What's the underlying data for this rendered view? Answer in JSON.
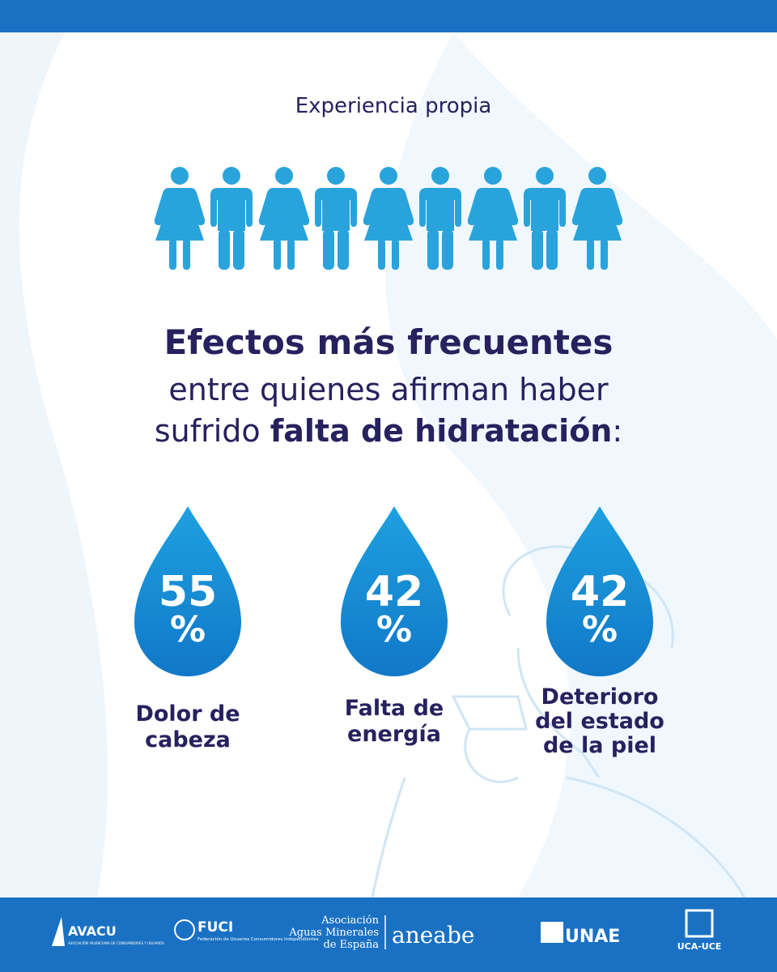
{
  "header": {
    "title": "Experiencia propia"
  },
  "headline": {
    "line1": "Efectos más frecuentes",
    "line2": "entre  quienes afirman haber",
    "line3": [
      "sufrido",
      "falta de hidratación",
      ":"
    ]
  },
  "stats": [
    {
      "value": 55,
      "unit": "%",
      "label": [
        "Dolor de",
        "cabeza"
      ]
    },
    {
      "value": 42,
      "unit": "%",
      "label": [
        "Falta de",
        "energía"
      ]
    },
    {
      "value": 42,
      "unit": "%",
      "label": [
        "Deterioro",
        "del estado",
        "de la piel"
      ]
    }
  ],
  "footer": {
    "logos": [
      {
        "name": "AVACU",
        "subtitle": "ASOCIACIÓN VALENCIANA DE CONSUMIDORES Y USUARIOS"
      },
      {
        "name": "FUCI",
        "subtitle": "Federación de Usuarios Consumidores Independientes"
      },
      {
        "lines": [
          "Asociación",
          "Aguas Minerales",
          "de España"
        ]
      },
      {
        "name": "aneabe"
      },
      {
        "name": "UNAE"
      },
      {
        "name": "UCA-UCE"
      }
    ]
  }
}
